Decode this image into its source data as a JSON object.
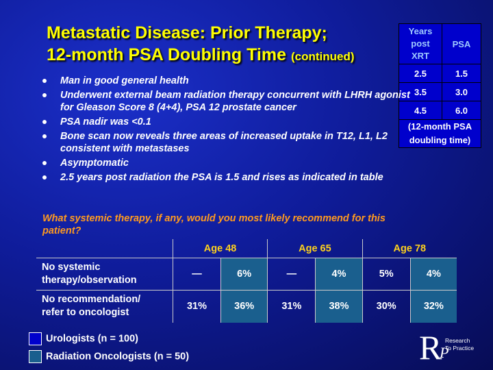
{
  "title": {
    "line1": "Metastatic Disease: Prior Therapy;",
    "line2": "12-month PSA Doubling Time",
    "suffix": "(continued)"
  },
  "psa_table": {
    "headers": [
      "Years post XRT",
      "PSA"
    ],
    "header_line1": "Years",
    "header_line2": "post",
    "header_line3": "XRT",
    "header_psa": "PSA",
    "rows": [
      {
        "years": "2.5",
        "psa": "1.5"
      },
      {
        "years": "3.5",
        "psa": "3.0"
      },
      {
        "years": "4.5",
        "psa": "6.0"
      }
    ],
    "note_line1": "(12-month PSA",
    "note_line2": "doubling time)"
  },
  "bullets": [
    "Man in good general health",
    "Underwent external beam radiation therapy concurrent with LHRH agonist for Gleason Score 8 (4+4), PSA 12 prostate cancer",
    "PSA nadir was <0.1",
    "Bone scan now reveals three areas of increased uptake in T12, L1, L2 consistent with metastases",
    "Asymptomatic",
    "2.5 years post radiation the PSA is 1.5 and rises as indicated in table"
  ],
  "question": "What systemic therapy, if any, would you most likely recommend for this patient?",
  "results": {
    "ages": [
      "Age 48",
      "Age 65",
      "Age 78"
    ],
    "rows": [
      {
        "label_line1": "No systemic",
        "label_line2": "therapy/observation",
        "values": [
          "—",
          "6%",
          "—",
          "4%",
          "5%",
          "4%"
        ]
      },
      {
        "label_line1": "No recommendation/",
        "label_line2": "refer to oncologist",
        "values": [
          "31%",
          "36%",
          "31%",
          "38%",
          "30%",
          "32%"
        ]
      }
    ]
  },
  "legend": {
    "urologists": "Urologists  (n = 100)",
    "radiation_oncologists": "Radiation Oncologists  (n = 50)",
    "urologists_color": "#0000cc",
    "radiation_oncologists_color": "#1a5f8e"
  },
  "logo": {
    "letter": "R",
    "letter2": "P",
    "name_line1": "Research",
    "name_line2": "To Practice"
  }
}
